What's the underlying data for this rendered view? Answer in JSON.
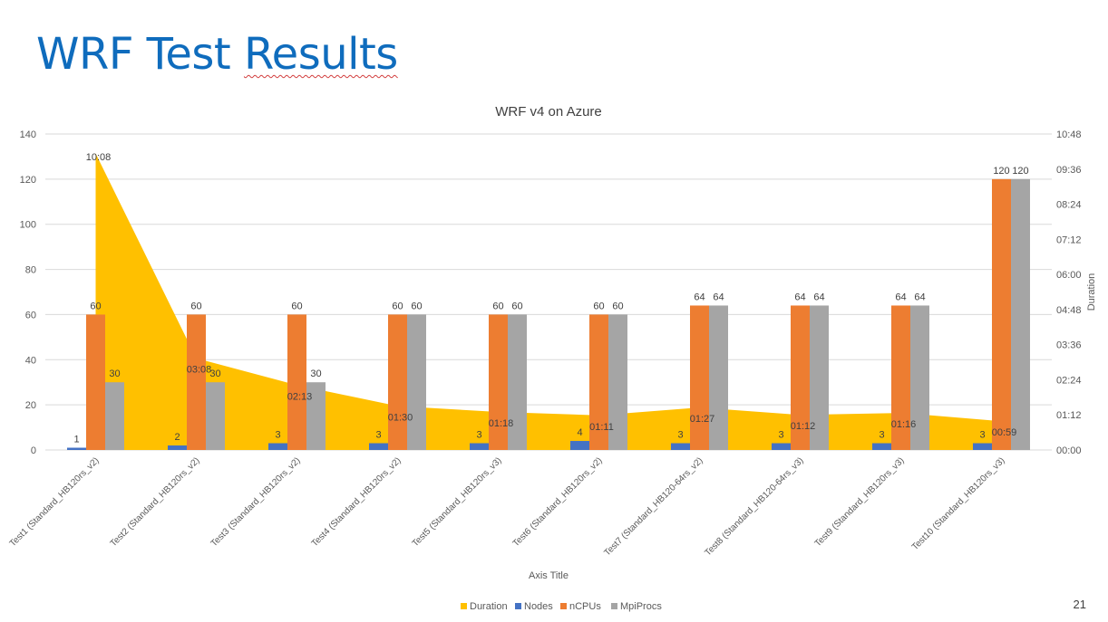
{
  "slide": {
    "title_part1": "WRF Test ",
    "title_part2": "Results",
    "page_number": "21"
  },
  "chart_data": {
    "type": "bar",
    "title": "WRF v4 on Azure",
    "xlabel": "Axis Title",
    "ylabel": "",
    "y2label": "Duration",
    "ylim": [
      0,
      140
    ],
    "yticks": [
      0,
      20,
      40,
      60,
      80,
      100,
      120,
      140
    ],
    "y2ticks": [
      "00:00",
      "01:12",
      "02:24",
      "03:36",
      "04:48",
      "06:00",
      "07:12",
      "08:24",
      "09:36",
      "10:48"
    ],
    "categories": [
      "Test1 (Standard_HB120rs_v2)",
      "Test2 (Standard_HB120rs_v2)",
      "Test3 (Standard_HB120rs_v2)",
      "Test4 (Standard_HB120rs_v2)",
      "Test5 (Standard_HB120rs_v3)",
      "Test6 (Standard_HB120rs_v2)",
      "Test7 (Standard_HB120-64rs_v2)",
      "Test8 (Standard_HB120-64rs_v3)",
      "Test9 (Standard_HB120rs_v3)",
      "Test10 (Standard_HB120rs_v3)"
    ],
    "series": [
      {
        "name": "Nodes",
        "color": "#4472c4",
        "values": [
          1,
          2,
          3,
          3,
          3,
          4,
          3,
          3,
          3,
          3
        ],
        "labels": [
          "1",
          "2",
          "3",
          "3",
          "3",
          "4",
          "3",
          "3",
          "3",
          "3"
        ]
      },
      {
        "name": "nCPUs",
        "color": "#ed7d31",
        "values": [
          60,
          60,
          60,
          60,
          60,
          60,
          64,
          64,
          64,
          120
        ],
        "labels": [
          "60",
          "60",
          "60",
          "60",
          "60",
          "60",
          "64",
          "64",
          "64",
          "120"
        ]
      },
      {
        "name": "MpiProcs",
        "color": "#a5a5a5",
        "values": [
          30,
          30,
          30,
          60,
          60,
          60,
          64,
          64,
          64,
          120
        ],
        "labels": [
          "30",
          "30",
          "30",
          "60",
          "60",
          "60",
          "64",
          "64",
          "64",
          "120"
        ]
      }
    ],
    "area_series": {
      "name": "Duration",
      "color": "#ffc000",
      "axis": "secondary",
      "labels": [
        "10:08",
        "03:08",
        "02:13",
        "01:30",
        "01:18",
        "01:11",
        "01:27",
        "01:12",
        "01:16",
        "00:59"
      ],
      "values_minutes": [
        608,
        188,
        133,
        90,
        78,
        71,
        87,
        72,
        76,
        59
      ]
    },
    "y2_max_minutes": 648,
    "legend": [
      "Duration",
      "Nodes",
      "nCPUs",
      "MpiProcs"
    ],
    "legend_position": "bottom",
    "grid": true
  }
}
